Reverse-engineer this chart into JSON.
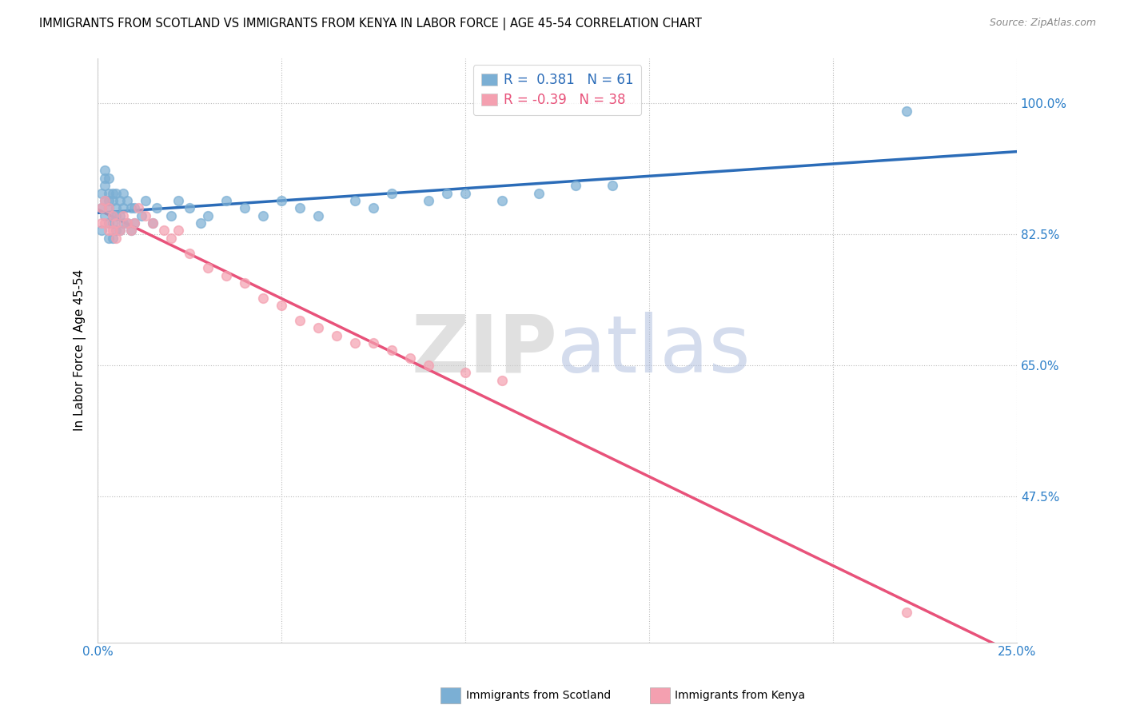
{
  "title": "IMMIGRANTS FROM SCOTLAND VS IMMIGRANTS FROM KENYA IN LABOR FORCE | AGE 45-54 CORRELATION CHART",
  "source_text": "Source: ZipAtlas.com",
  "ylabel": "In Labor Force | Age 45-54",
  "xlim": [
    0.0,
    0.25
  ],
  "ylim": [
    0.28,
    1.06
  ],
  "scotland_color": "#7BAFD4",
  "kenya_color": "#F4A0B0",
  "trend_scotland_color": "#2B6CB8",
  "trend_kenya_color": "#E8527A",
  "R_scotland": 0.381,
  "N_scotland": 61,
  "R_kenya": -0.39,
  "N_kenya": 38,
  "scotland_x": [
    0.001,
    0.001,
    0.001,
    0.002,
    0.002,
    0.002,
    0.002,
    0.002,
    0.003,
    0.003,
    0.003,
    0.003,
    0.003,
    0.003,
    0.004,
    0.004,
    0.004,
    0.004,
    0.004,
    0.005,
    0.005,
    0.005,
    0.005,
    0.006,
    0.006,
    0.006,
    0.007,
    0.007,
    0.007,
    0.008,
    0.008,
    0.009,
    0.009,
    0.01,
    0.01,
    0.012,
    0.013,
    0.015,
    0.016,
    0.02,
    0.022,
    0.025,
    0.028,
    0.03,
    0.035,
    0.04,
    0.045,
    0.05,
    0.055,
    0.06,
    0.07,
    0.075,
    0.08,
    0.09,
    0.095,
    0.1,
    0.11,
    0.12,
    0.13,
    0.14,
    0.22
  ],
  "scotland_y": [
    0.83,
    0.86,
    0.88,
    0.85,
    0.87,
    0.89,
    0.9,
    0.91,
    0.82,
    0.84,
    0.86,
    0.87,
    0.88,
    0.9,
    0.82,
    0.84,
    0.85,
    0.87,
    0.88,
    0.83,
    0.85,
    0.86,
    0.88,
    0.83,
    0.85,
    0.87,
    0.84,
    0.86,
    0.88,
    0.84,
    0.87,
    0.83,
    0.86,
    0.84,
    0.86,
    0.85,
    0.87,
    0.84,
    0.86,
    0.85,
    0.87,
    0.86,
    0.84,
    0.85,
    0.87,
    0.86,
    0.85,
    0.87,
    0.86,
    0.85,
    0.87,
    0.86,
    0.88,
    0.87,
    0.88,
    0.88,
    0.87,
    0.88,
    0.89,
    0.89,
    0.99
  ],
  "kenya_x": [
    0.001,
    0.001,
    0.002,
    0.002,
    0.003,
    0.003,
    0.004,
    0.004,
    0.005,
    0.005,
    0.006,
    0.007,
    0.008,
    0.009,
    0.01,
    0.011,
    0.013,
    0.015,
    0.018,
    0.02,
    0.022,
    0.025,
    0.03,
    0.035,
    0.04,
    0.045,
    0.05,
    0.055,
    0.06,
    0.065,
    0.07,
    0.075,
    0.08,
    0.085,
    0.09,
    0.1,
    0.11,
    0.22
  ],
  "kenya_y": [
    0.84,
    0.86,
    0.84,
    0.87,
    0.83,
    0.86,
    0.83,
    0.85,
    0.82,
    0.84,
    0.83,
    0.85,
    0.84,
    0.83,
    0.84,
    0.86,
    0.85,
    0.84,
    0.83,
    0.82,
    0.83,
    0.8,
    0.78,
    0.77,
    0.76,
    0.74,
    0.73,
    0.71,
    0.7,
    0.69,
    0.68,
    0.68,
    0.67,
    0.66,
    0.65,
    0.64,
    0.63,
    0.32
  ]
}
